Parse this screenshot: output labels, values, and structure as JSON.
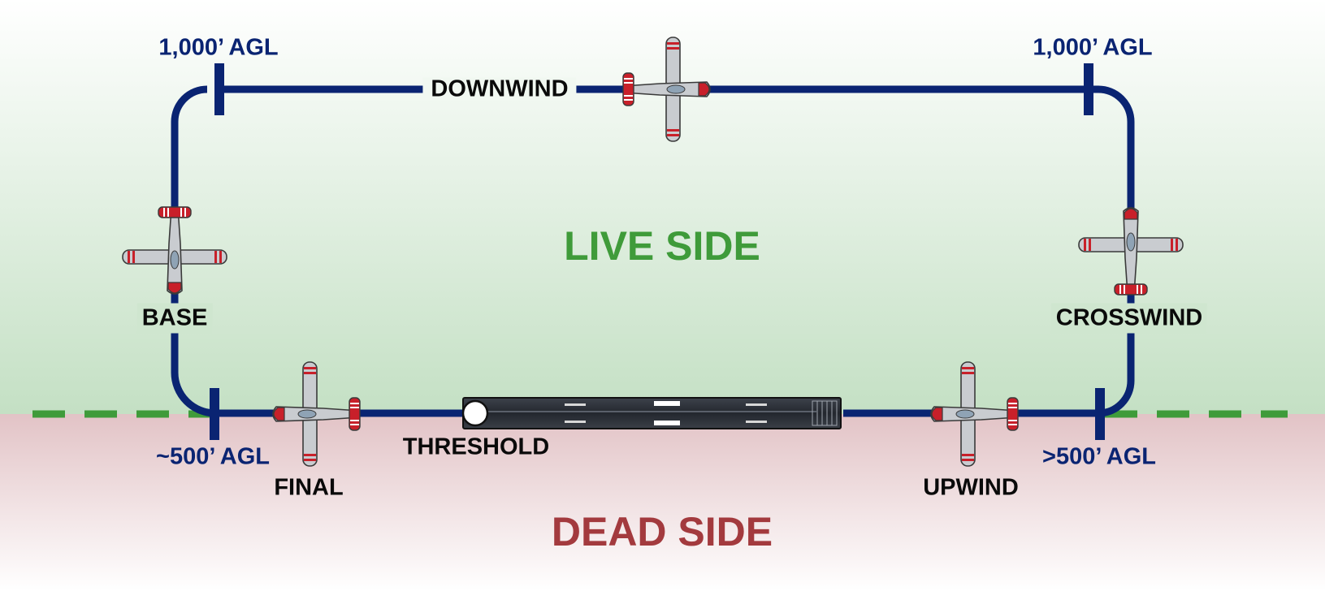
{
  "diagram": {
    "colors": {
      "pattern_line": "#0a2472",
      "live_side": "#3f9b3a",
      "dead_side": "#a33a3e",
      "live_bg": "#c4e0c4",
      "dead_bg": "#e2c3c6",
      "runway": "#2b2f36",
      "aircraft_body": "#c9ccd0",
      "aircraft_accent": "#c8202a"
    },
    "legs": {
      "downwind": "DOWNWIND",
      "base": "BASE",
      "crosswind": "CROSSWIND",
      "final": "FINAL",
      "upwind": "UPWIND",
      "threshold": "THRESHOLD"
    },
    "altitudes": {
      "downwind_left": "1,000’ AGL",
      "downwind_right": "1,000’ AGL",
      "final": "~500’ AGL",
      "upwind": ">500’ AGL"
    },
    "sides": {
      "live": "LIVE SIDE",
      "dead": "DEAD SIDE"
    },
    "aircraft": [
      {
        "id": "downwind",
        "heading": "east"
      },
      {
        "id": "base",
        "heading": "south"
      },
      {
        "id": "crosswind",
        "heading": "north"
      },
      {
        "id": "final",
        "heading": "west"
      },
      {
        "id": "upwind",
        "heading": "west"
      }
    ]
  }
}
